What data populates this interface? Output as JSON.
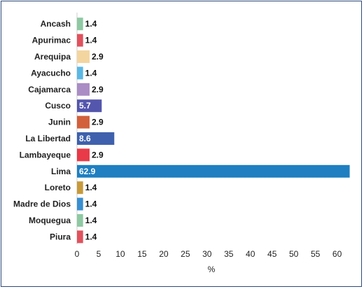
{
  "chart_data": {
    "type": "bar",
    "orientation": "horizontal",
    "categories": [
      "Ancash",
      "Apurimac",
      "Arequipa",
      "Ayacucho",
      "Cajamarca",
      "Cusco",
      "Junin",
      "La Libertad",
      "Lambayeque",
      "Lima",
      "Loreto",
      "Madre de Dios",
      "Moquegua",
      "Piura"
    ],
    "values": [
      1.4,
      1.4,
      2.9,
      1.4,
      2.9,
      5.7,
      2.9,
      8.6,
      2.9,
      62.9,
      1.4,
      1.4,
      1.4,
      1.4
    ],
    "value_labels": [
      "1.4",
      "1.4",
      "2.9",
      "1.4",
      "2.9",
      "5.7",
      "2.9",
      "8.6",
      "2.9",
      "62.9",
      "1.4",
      "1.4",
      "1.4",
      "1.4"
    ],
    "colors": [
      "#8fc9a3",
      "#e0525e",
      "#f3d5a0",
      "#5bb8e4",
      "#a98dc4",
      "#5456ad",
      "#d2603c",
      "#3f61ad",
      "#e83a48",
      "#1f7fc1",
      "#c79a3c",
      "#3a8fd0",
      "#8fc9a3",
      "#e0525e"
    ],
    "xlabel": "%",
    "xlim": [
      0,
      62
    ],
    "xticks": [
      0,
      5,
      10,
      15,
      20,
      25,
      30,
      35,
      40,
      45,
      50,
      55,
      60
    ],
    "grid": false,
    "legend": "none"
  }
}
